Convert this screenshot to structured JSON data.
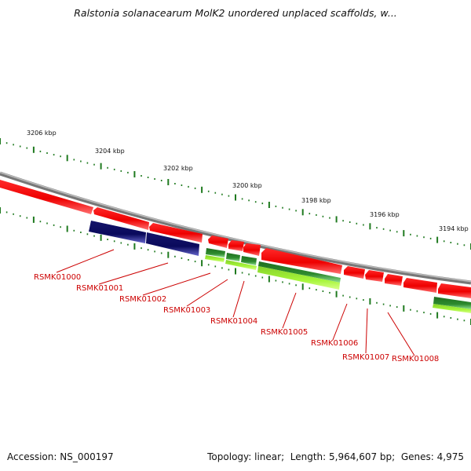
{
  "title": "Ralstonia solanacearum MolK2 unordered unplaced scaffolds, w...",
  "accession": {
    "label": "Accession:",
    "value": "NS_000197"
  },
  "topology": {
    "label": "Topology:",
    "value": "linear"
  },
  "length": {
    "label": "Length:",
    "value": "5,964,607 bp"
  },
  "genes_count": {
    "label": "Genes:",
    "value": "4,975"
  },
  "ruler_labels": [
    "3206 kbp",
    "3204 kbp",
    "3202 kbp",
    "3200 kbp",
    "3198 kbp",
    "3196 kbp",
    "3194 kbp"
  ],
  "gene_labels": [
    "RSMK01000",
    "RSMK01001",
    "RSMK01002",
    "RSMK01003",
    "RSMK01004",
    "RSMK01005",
    "RSMK01006",
    "RSMK01007",
    "RSMK01008"
  ],
  "colors": {
    "forward_gene": "#ff0000",
    "rna_gene": "#1a1a7a",
    "green_feature": "#2e8b2e",
    "lime_feature": "#a6f53a",
    "backbone": "#8a8a8a",
    "gene_label": "#cc0000",
    "ticks": "#1f7a1f"
  }
}
